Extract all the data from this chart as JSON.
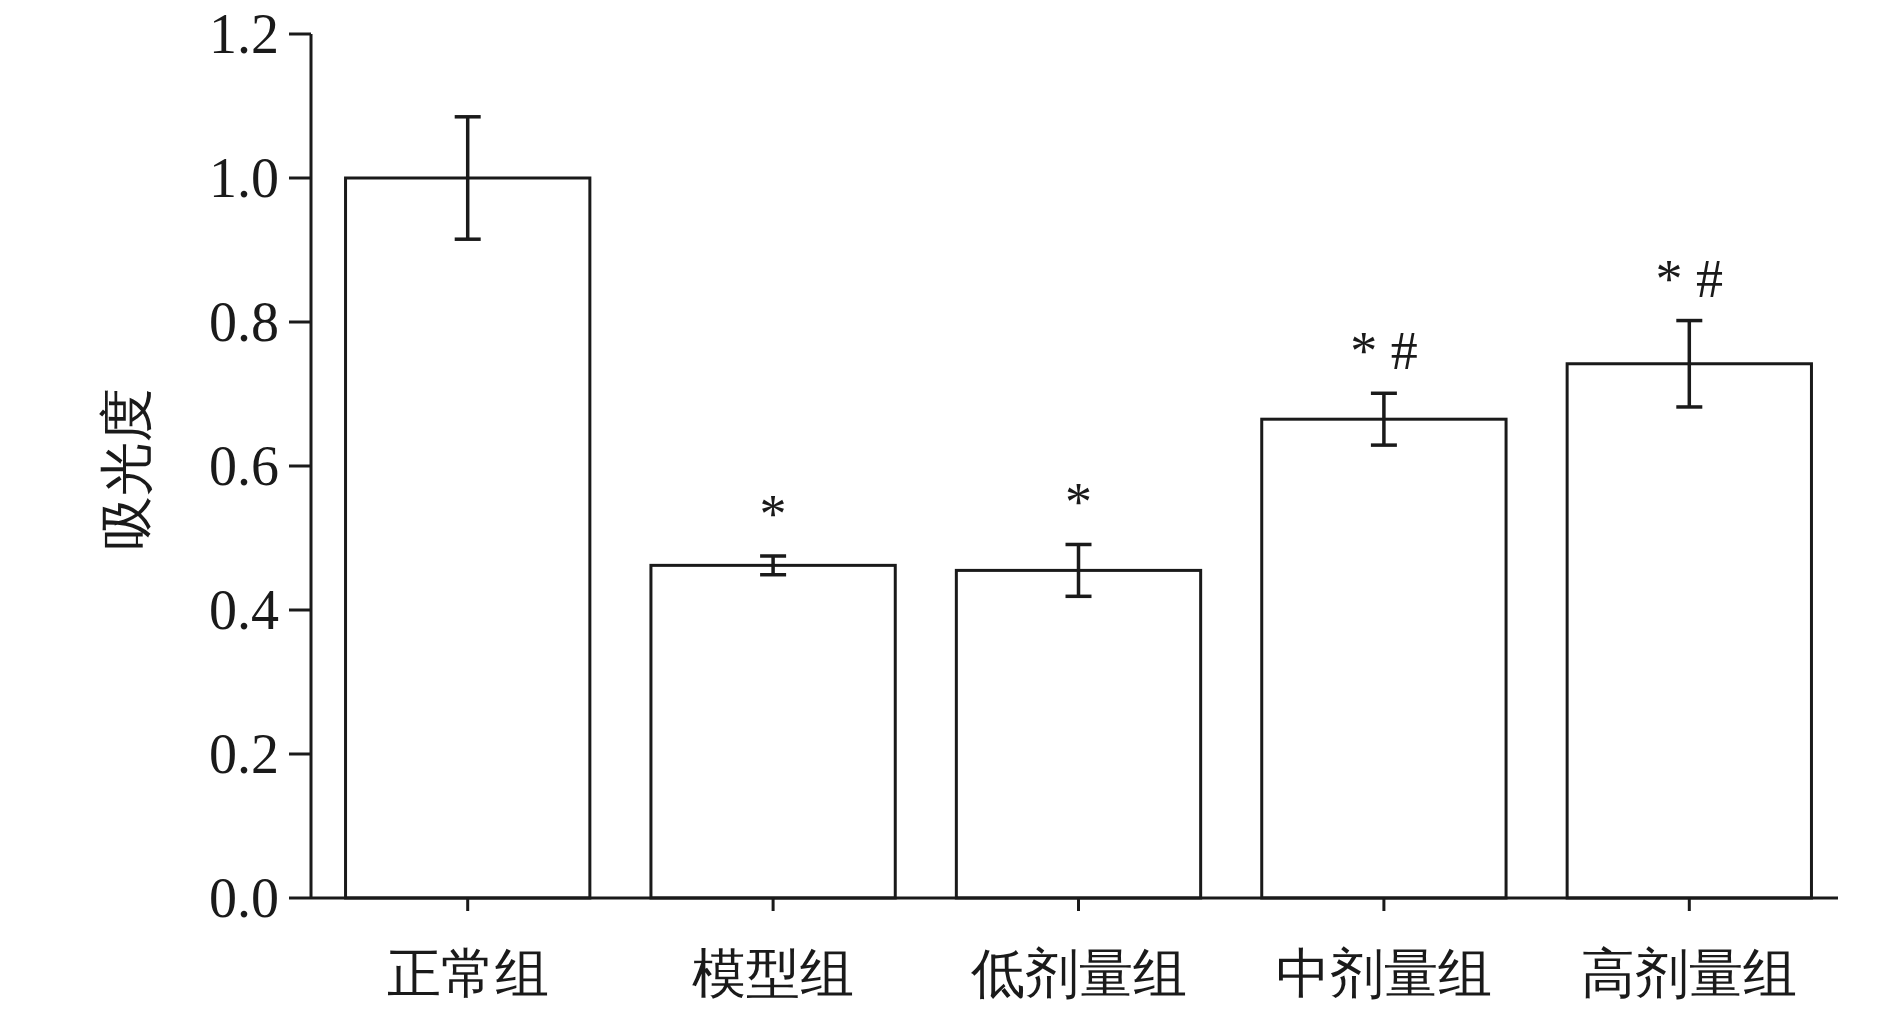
{
  "chart_data": {
    "type": "bar",
    "ylabel": "吸光度",
    "categories": [
      "正常组",
      "模型组",
      "低剂量组",
      "中剂量组",
      "高剂量组"
    ],
    "values": [
      1.0,
      0.462,
      0.455,
      0.665,
      0.742
    ],
    "errors": [
      0.085,
      0.013,
      0.036,
      0.036,
      0.06
    ],
    "color": "#ffffff",
    "ylim": [
      0,
      1.2
    ],
    "yticks": [
      {
        "value": 0,
        "label": "0.0"
      },
      0.2,
      0.4,
      0.6,
      0.8,
      {
        "value": 1,
        "label": "1.0"
      },
      1.2
    ],
    "annotations": [
      {
        "text": "*",
        "x": "模型组",
        "y": 0.462
      },
      {
        "text": "*",
        "x": "低剂量组",
        "y": 0.455
      },
      {
        "text": "* #",
        "x": "中剂量组",
        "y": 0.665
      },
      {
        "text": "* #",
        "x": "高剂量组",
        "y": 0.742
      }
    ]
  }
}
